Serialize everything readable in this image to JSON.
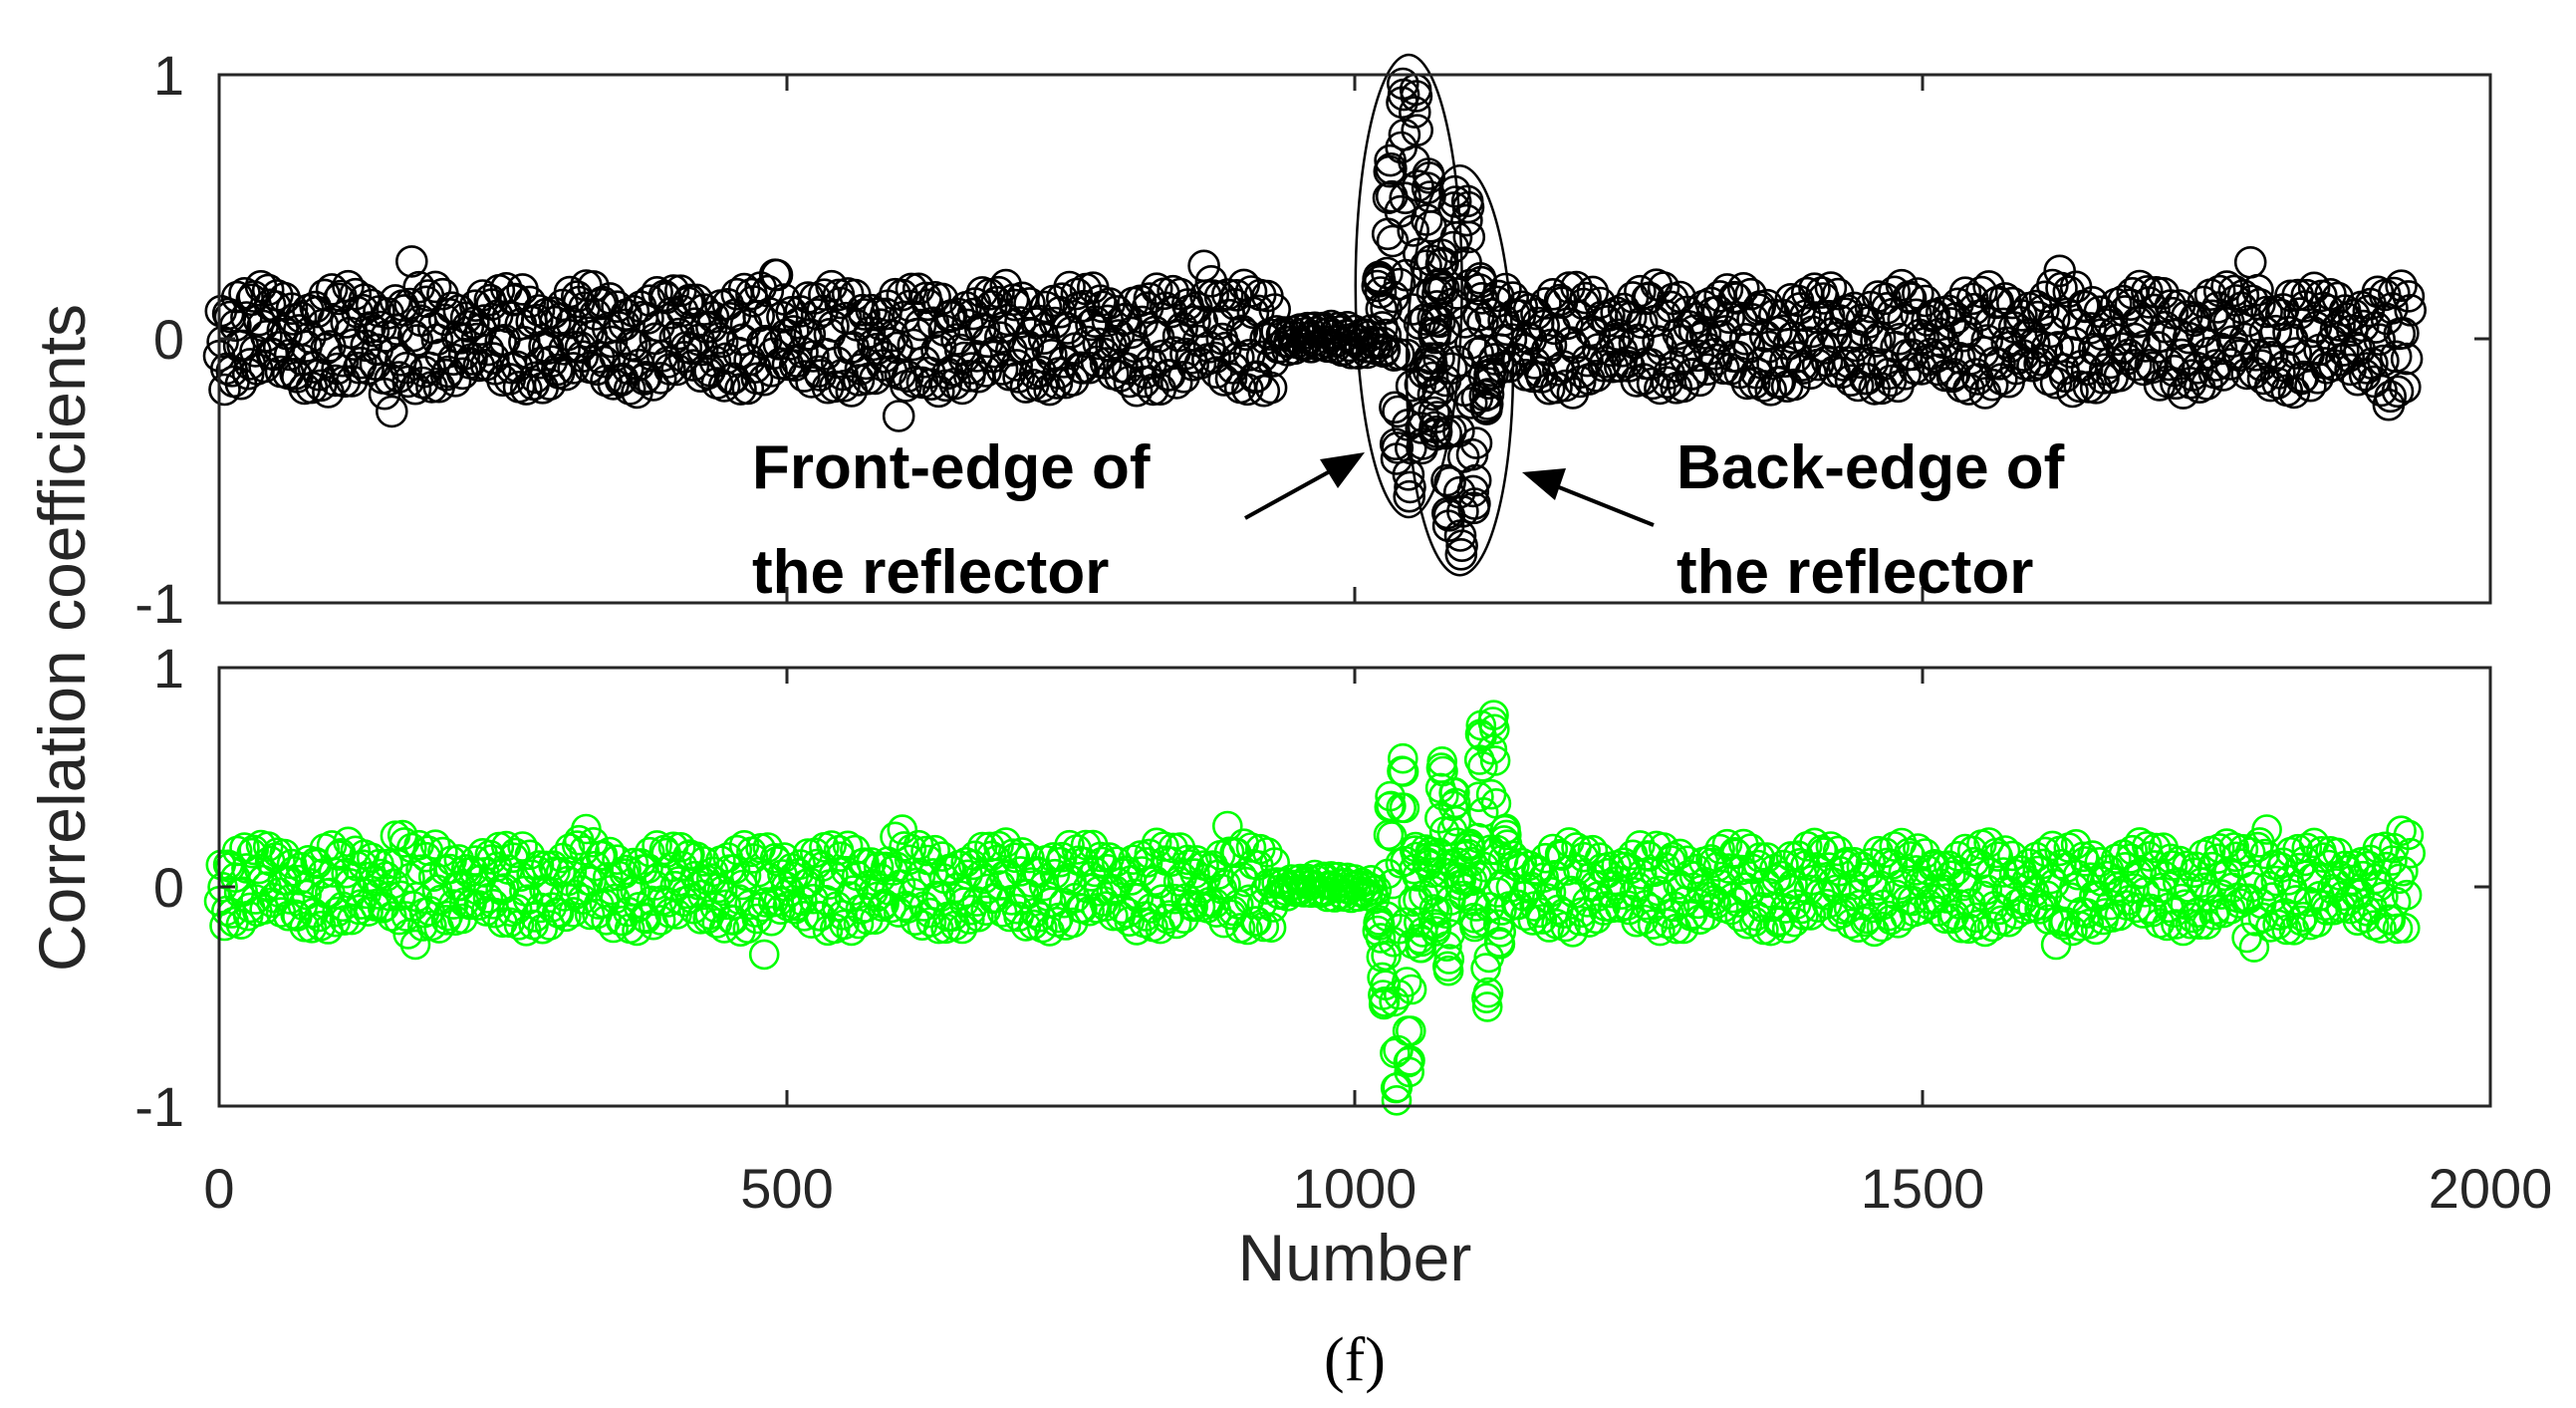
{
  "chart_data": [
    {
      "type": "scatter",
      "panel": "top",
      "marker": "circle-open",
      "color": "#000000",
      "xlim": [
        0,
        2000
      ],
      "ylim": [
        -1,
        1
      ],
      "yticks": [
        "-1",
        "0",
        "1"
      ],
      "x_range": [
        0,
        1930
      ],
      "background": {
        "amplitude": 0.2,
        "peaks_up": [
          [
            170,
            0.3
          ],
          [
            490,
            0.3
          ],
          [
            870,
            0.3
          ],
          [
            1620,
            0.3
          ],
          [
            1790,
            0.3
          ]
        ],
        "peaks_down": [
          [
            150,
            -0.3
          ],
          [
            600,
            -0.3
          ],
          [
            1910,
            -0.3
          ]
        ]
      },
      "events": [
        {
          "label": "Front-edge of the reflector",
          "x_range": [
            1020,
            1075
          ],
          "y_range": [
            -0.6,
            1.0
          ]
        },
        {
          "label": "Back-edge of the reflector",
          "x_range": [
            1065,
            1120
          ],
          "y_range": [
            -0.82,
            0.58
          ]
        }
      ],
      "annotations": [
        {
          "line1": "Front-edge of",
          "line2": "the reflector"
        },
        {
          "line1": "Back-edge of",
          "line2": "the reflector"
        }
      ]
    },
    {
      "type": "scatter",
      "panel": "bottom",
      "marker": "circle-open",
      "color": "#00ff00",
      "xlim": [
        0,
        2000
      ],
      "ylim": [
        -1,
        1
      ],
      "xticks": [
        "0",
        "500",
        "1000",
        "1500",
        "2000"
      ],
      "yticks": [
        "-1",
        "0",
        "1"
      ],
      "x_range": [
        0,
        1930
      ],
      "background": {
        "amplitude": 0.2,
        "peaks_up": [
          [
            160,
            0.3
          ],
          [
            320,
            0.3
          ],
          [
            600,
            0.3
          ],
          [
            890,
            0.3
          ],
          [
            1800,
            0.3
          ],
          [
            1925,
            0.3
          ]
        ],
        "peaks_down": [
          [
            170,
            -0.3
          ],
          [
            480,
            -0.3
          ],
          [
            1620,
            -0.3
          ],
          [
            1790,
            -0.3
          ]
        ]
      },
      "events": [
        {
          "x_range": [
            1020,
            1060
          ],
          "y_range": [
            -1.0,
            0.6
          ]
        },
        {
          "x_range": [
            1065,
            1095
          ],
          "y_range": [
            -0.4,
            0.6
          ]
        },
        {
          "x_range": [
            1100,
            1135
          ],
          "y_range": [
            -0.55,
            0.85
          ]
        }
      ]
    }
  ],
  "shared": {
    "ylabel": "Correlation coefficients",
    "xlabel": "Number",
    "caption": "(f)"
  }
}
